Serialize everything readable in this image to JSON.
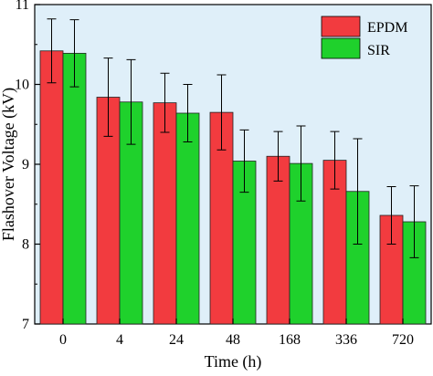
{
  "chart_data": {
    "type": "bar",
    "categories": [
      "0",
      "4",
      "24",
      "48",
      "168",
      "336",
      "720"
    ],
    "series": [
      {
        "name": "EPDM",
        "values": [
          10.42,
          9.84,
          9.77,
          9.65,
          9.1,
          9.05,
          8.36
        ],
        "error": [
          0.4,
          0.49,
          0.37,
          0.47,
          0.31,
          0.36,
          0.36
        ],
        "color": "#f23b3f"
      },
      {
        "name": "SIR",
        "values": [
          10.39,
          9.78,
          9.64,
          9.04,
          9.01,
          8.66,
          8.28
        ],
        "error": [
          0.42,
          0.53,
          0.36,
          0.39,
          0.47,
          0.66,
          0.45
        ],
        "color": "#1fd12c"
      }
    ],
    "xlabel": "Time (h)",
    "ylabel": "Flashover Voltage (kV)",
    "ylim": [
      7,
      11
    ],
    "yticks": [
      "7",
      "8",
      "9",
      "10",
      "11"
    ],
    "legend_placement": "top-right",
    "grid": false
  }
}
